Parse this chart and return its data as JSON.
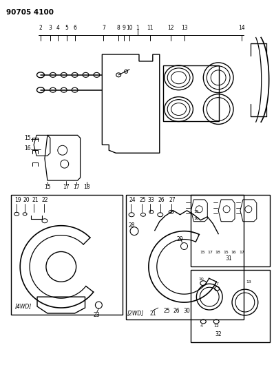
{
  "title": "90705 4100",
  "bg_color": "#ffffff",
  "line_color": "#000000",
  "fig_width": 3.98,
  "fig_height": 5.33,
  "dpi": 100
}
